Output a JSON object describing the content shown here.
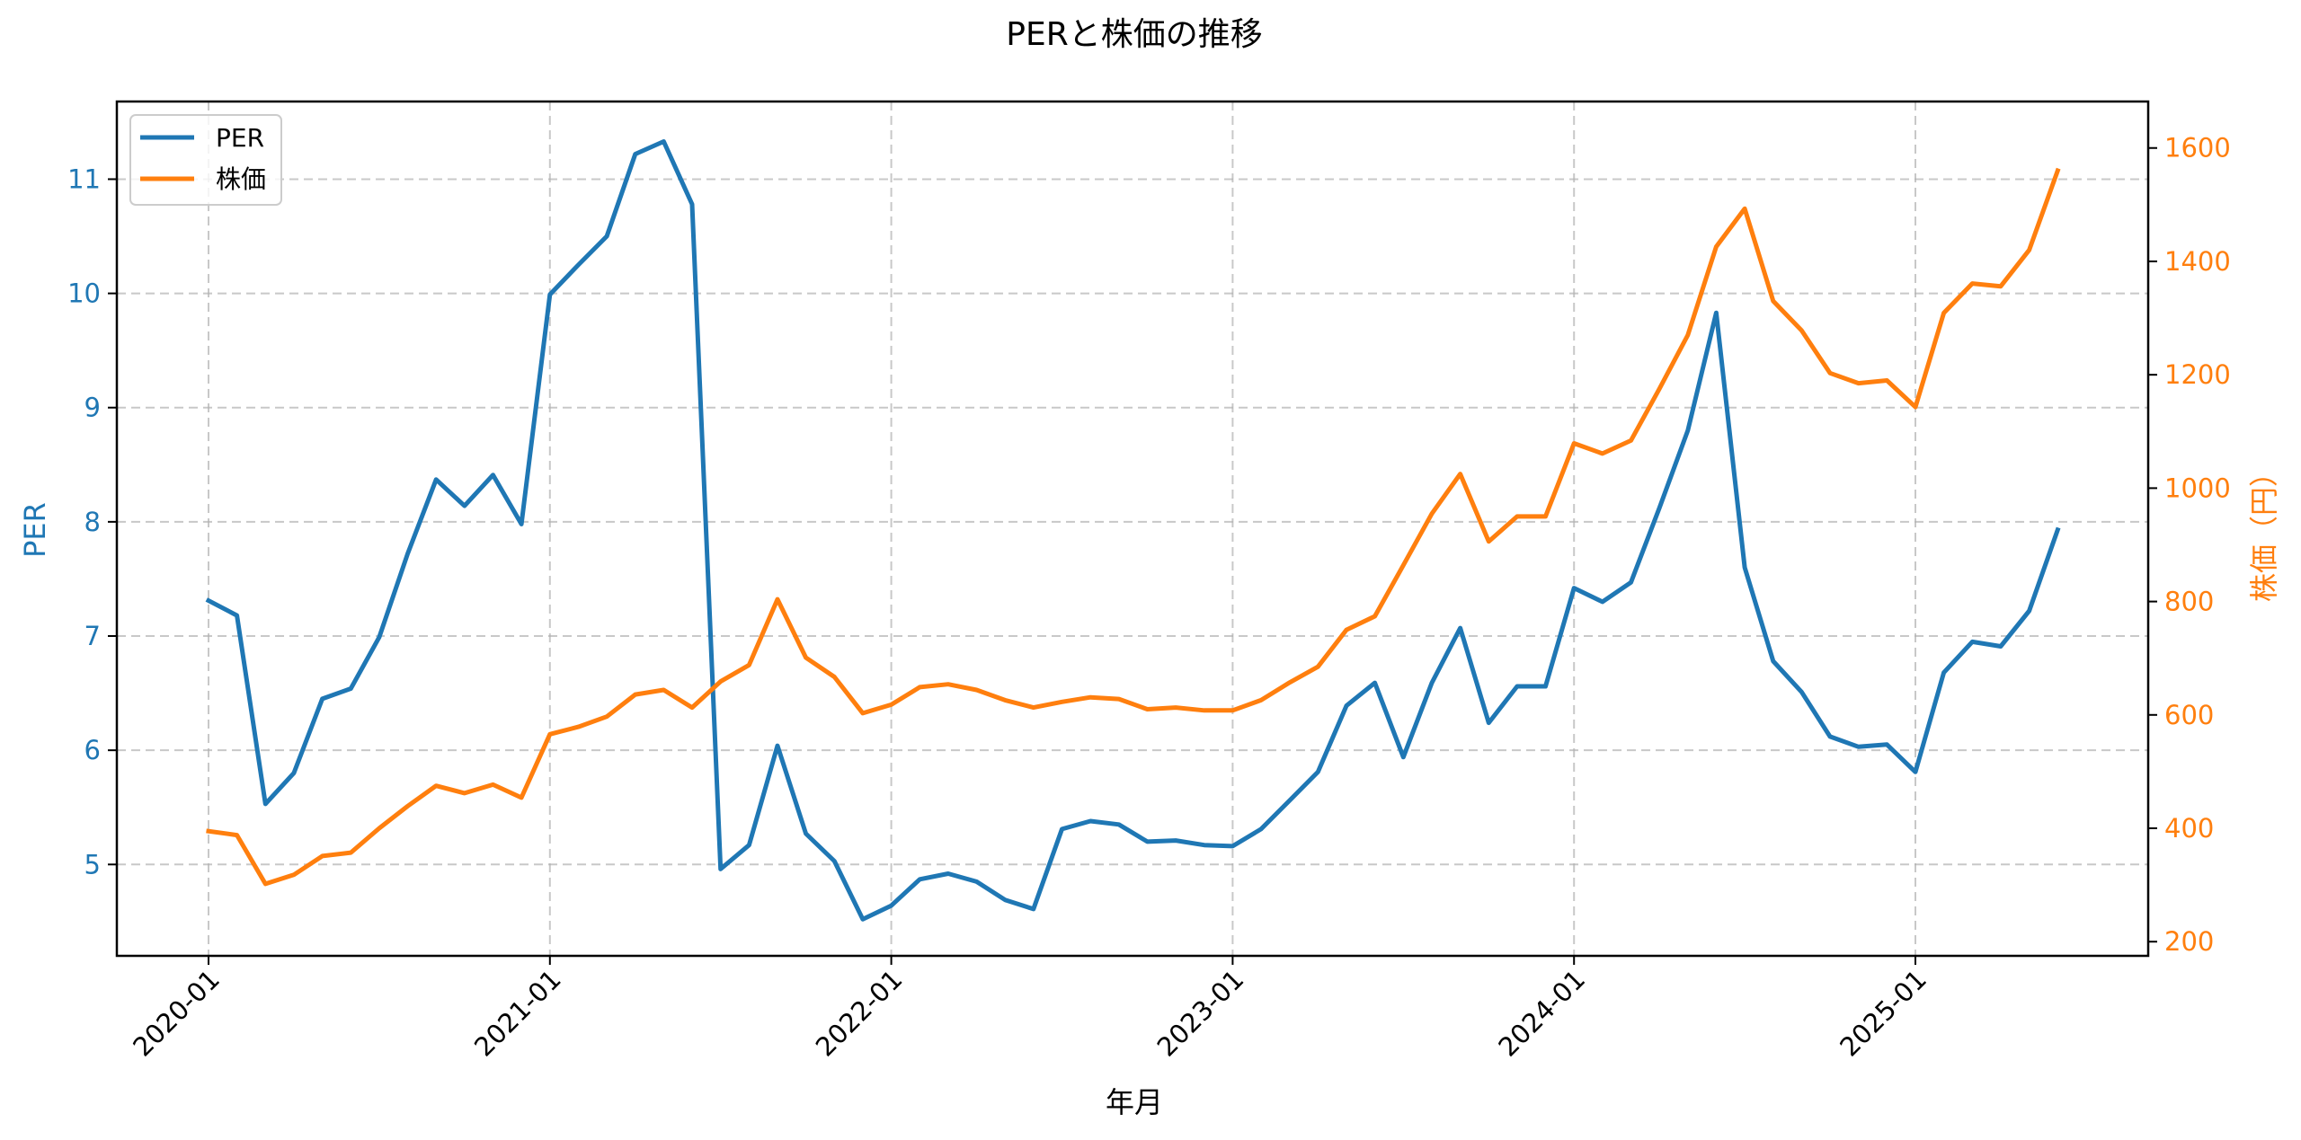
{
  "chart_data": {
    "type": "line",
    "title": "PERと株価の推移",
    "xlabel": "年月",
    "ylabel": "PER",
    "ylabel_right": "株価（円）",
    "x": [
      "2020-01",
      "2020-02",
      "2020-03",
      "2020-04",
      "2020-05",
      "2020-06",
      "2020-07",
      "2020-08",
      "2020-09",
      "2020-10",
      "2020-11",
      "2020-12",
      "2021-01",
      "2021-02",
      "2021-03",
      "2021-04",
      "2021-05",
      "2021-06",
      "2021-07",
      "2021-08",
      "2021-09",
      "2021-10",
      "2021-11",
      "2021-12",
      "2022-01",
      "2022-02",
      "2022-03",
      "2022-04",
      "2022-05",
      "2022-06",
      "2022-07",
      "2022-08",
      "2022-09",
      "2022-10",
      "2022-11",
      "2022-12",
      "2023-01",
      "2023-02",
      "2023-03",
      "2023-04",
      "2023-05",
      "2023-06",
      "2023-07",
      "2023-08",
      "2023-09",
      "2023-10",
      "2023-11",
      "2023-12",
      "2024-01",
      "2024-02",
      "2024-03",
      "2024-04",
      "2024-05",
      "2024-06",
      "2024-07",
      "2024-08",
      "2024-09",
      "2024-10",
      "2024-11",
      "2024-12",
      "2025-01",
      "2025-02",
      "2025-03",
      "2025-04",
      "2025-05",
      "2025-06"
    ],
    "x_tick_labels": [
      "2020-01",
      "2021-01",
      "2022-01",
      "2023-01",
      "2024-01",
      "2025-01"
    ],
    "series": [
      {
        "name": "PER",
        "axis": "left",
        "color": "#1f77b4",
        "values": [
          7.31,
          7.18,
          5.53,
          5.8,
          6.45,
          6.54,
          6.99,
          7.72,
          8.37,
          8.14,
          8.41,
          7.98,
          9.99,
          10.25,
          10.5,
          11.22,
          11.33,
          10.78,
          4.96,
          5.17,
          6.04,
          5.27,
          5.03,
          4.52,
          4.64,
          4.87,
          4.92,
          4.85,
          4.69,
          4.61,
          5.31,
          5.38,
          5.35,
          5.2,
          5.21,
          5.17,
          5.16,
          5.31,
          5.56,
          5.81,
          6.39,
          6.59,
          5.94,
          6.59,
          7.07,
          6.24,
          6.56,
          6.56,
          7.42,
          7.3,
          7.47,
          8.12,
          8.8,
          9.83,
          7.6,
          6.78,
          6.51,
          6.12,
          6.03,
          6.05,
          5.81,
          6.68,
          6.95,
          6.91,
          7.22,
          7.93
        ]
      },
      {
        "name": "株価",
        "axis": "right",
        "color": "#ff7f0e",
        "values": [
          395,
          388,
          302,
          318,
          351,
          357,
          400,
          439,
          475,
          462,
          477,
          454,
          566,
          579,
          597,
          636,
          644,
          613,
          659,
          688,
          804,
          701,
          667,
          603,
          618,
          649,
          654,
          644,
          626,
          613,
          623,
          631,
          628,
          610,
          613,
          608,
          608,
          626,
          657,
          685,
          750,
          774,
          864,
          955,
          1025,
          906,
          950,
          950,
          1079,
          1061,
          1084,
          1175,
          1270,
          1426,
          1493,
          1330,
          1278,
          1203,
          1185,
          1190,
          1143,
          1309,
          1361,
          1356,
          1420,
          1560
        ]
      }
    ],
    "ylim": [
      4.2,
      11.68
    ],
    "ylim_right": [
      175,
      1682
    ],
    "yticks": [
      5,
      6,
      7,
      8,
      9,
      10,
      11
    ],
    "yticks_right": [
      200,
      400,
      600,
      800,
      1000,
      1200,
      1400,
      1600
    ],
    "grid": true,
    "legend_position": "upper left",
    "legend": [
      "PER",
      "株価"
    ]
  }
}
